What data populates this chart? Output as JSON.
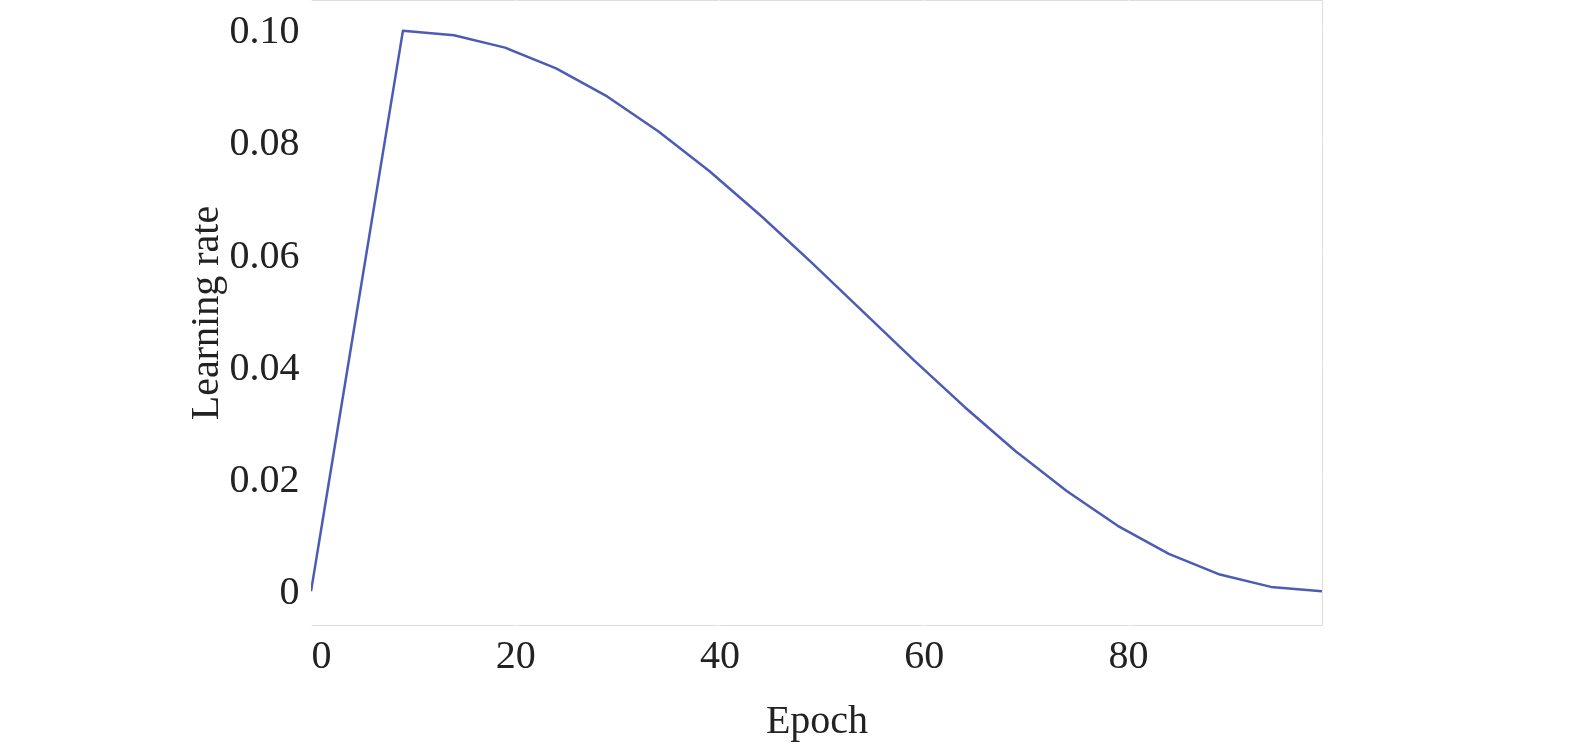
{
  "chart_data": {
    "type": "line",
    "xlabel": "Epoch",
    "ylabel": "Learning rate",
    "x": [
      0,
      9,
      14,
      19,
      24,
      29,
      34,
      39,
      44,
      49,
      54,
      59,
      64,
      69,
      74,
      79,
      84,
      89,
      94,
      99
    ],
    "series": [
      {
        "color": "#4c5cb5",
        "values": [
          0,
          0.1,
          0.0992,
          0.097,
          0.0933,
          0.0883,
          0.0821,
          0.075,
          0.0671,
          0.0587,
          0.05,
          0.0413,
          0.0329,
          0.025,
          0.0179,
          0.0117,
          0.0067,
          0.003,
          0.0008,
          0
        ]
      }
    ],
    "xlim": [
      0,
      99
    ],
    "ylim": [
      -0.006,
      0.1055
    ],
    "xticks": [
      0,
      20,
      40,
      60,
      80
    ],
    "yticks": [
      0,
      0.02,
      0.04,
      0.06,
      0.08,
      {
        "value": 0.1,
        "label": "0.10"
      }
    ],
    "grid": true,
    "marker": "none",
    "line_style": "solid"
  }
}
